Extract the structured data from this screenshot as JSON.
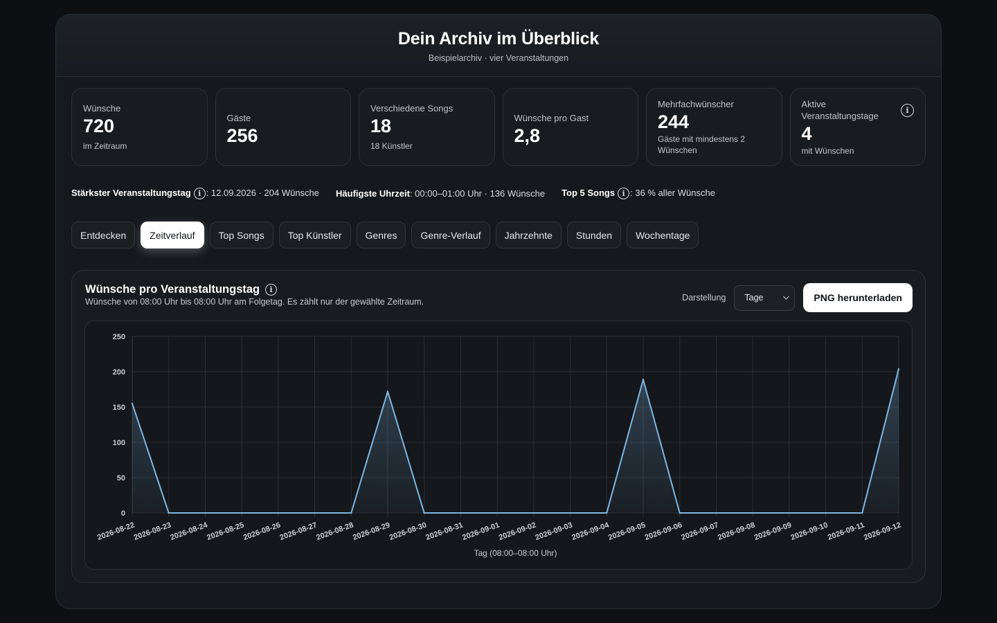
{
  "header": {
    "title": "Dein Archiv im Überblick",
    "subtitle": "Beispielarchiv · vier Veranstaltungen"
  },
  "stats": [
    {
      "label": "Wünsche",
      "value": "720",
      "note": "im Zeitraum"
    },
    {
      "label": "Gäste",
      "value": "256",
      "note": ""
    },
    {
      "label": "Verschiedene Songs",
      "value": "18",
      "note": "18 Künstler"
    },
    {
      "label": "Wünsche pro Gast",
      "value": "2,8",
      "note": ""
    },
    {
      "label": "Mehrfachwünscher",
      "value": "244",
      "note": "Gäste mit mindestens 2 Wünschen"
    },
    {
      "label": "Aktive Veranstaltungstage",
      "value": "4",
      "note": "mit Wünschen"
    }
  ],
  "highlights": {
    "strongest_day_label": "Stärkster Veranstaltungstag",
    "strongest_day_value": ": 12.09.2026 · 204 Wünsche",
    "peak_hour_label": "Häufigste Uhrzeit",
    "peak_hour_value": ": 00:00–01:00 Uhr · 136 Wünsche",
    "top5_label": "Top 5 Songs",
    "top5_value": ": 36 % aller Wünsche"
  },
  "tabs": [
    {
      "label": "Entdecken",
      "active": false
    },
    {
      "label": "Zeitverlauf",
      "active": true
    },
    {
      "label": "Top Songs",
      "active": false
    },
    {
      "label": "Top Künstler",
      "active": false
    },
    {
      "label": "Genres",
      "active": false
    },
    {
      "label": "Genre-Verlauf",
      "active": false
    },
    {
      "label": "Jahrzehnte",
      "active": false
    },
    {
      "label": "Stunden",
      "active": false
    },
    {
      "label": "Wochentage",
      "active": false
    }
  ],
  "chart_card": {
    "title": "Wünsche pro Veranstaltungstag",
    "description": "Wünsche von 08:00 Uhr bis 08:00 Uhr am Folgetag. Es zählt nur der gewählte Zeitraum.",
    "view_label": "Darstellung",
    "view_selected": "Tage",
    "download_label": "PNG herunterladen"
  },
  "colors": {
    "line": "#7fb6e0",
    "fill": "#7fb6e0",
    "grid": "#2a2f36",
    "tick": "#c9ced5"
  },
  "chart_data": {
    "type": "area",
    "x": [
      "2026-08-22",
      "2026-08-23",
      "2026-08-24",
      "2026-08-25",
      "2026-08-26",
      "2026-08-27",
      "2026-08-28",
      "2026-08-29",
      "2026-08-30",
      "2026-08-31",
      "2026-09-01",
      "2026-09-02",
      "2026-09-03",
      "2026-09-04",
      "2026-09-05",
      "2026-09-06",
      "2026-09-07",
      "2026-09-08",
      "2026-09-09",
      "2026-09-10",
      "2026-09-11",
      "2026-09-12"
    ],
    "values": [
      155,
      0,
      0,
      0,
      0,
      0,
      0,
      172,
      0,
      0,
      0,
      0,
      0,
      0,
      189,
      0,
      0,
      0,
      0,
      0,
      0,
      204
    ],
    "xlabel": "Tag (08:00–08:00 Uhr)",
    "ylabel": "",
    "ylim": [
      0,
      250
    ],
    "yticks": [
      0,
      50,
      100,
      150,
      200,
      250
    ],
    "grid": true
  }
}
